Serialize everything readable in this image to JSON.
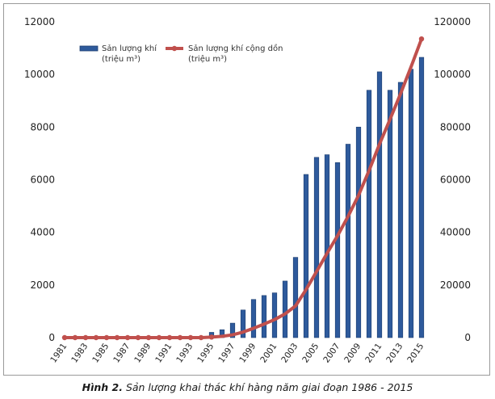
{
  "caption": {
    "label": "Hình 2.",
    "text": "Sản lượng khai thác khí hàng năm giai đoạn 1986 - 2015"
  },
  "chart_data": {
    "type": "bar",
    "x": [
      1981,
      1982,
      1983,
      1984,
      1985,
      1986,
      1987,
      1988,
      1989,
      1990,
      1991,
      1992,
      1993,
      1994,
      1995,
      1996,
      1997,
      1998,
      1999,
      2000,
      2001,
      2002,
      2003,
      2004,
      2005,
      2006,
      2007,
      2008,
      2009,
      2010,
      2011,
      2012,
      2013,
      2014,
      2015
    ],
    "x_tick_labels": [
      "1981",
      "1983",
      "1985",
      "1987",
      "1989",
      "1991",
      "1993",
      "1995",
      "1997",
      "1999",
      "2001",
      "2003",
      "2005",
      "2007",
      "2009",
      "2011",
      "2013",
      "2015"
    ],
    "series": [
      {
        "name": "Sản lượng khí",
        "unit": "(triệu m³)",
        "type": "bar",
        "axis": "left",
        "color": "#2e5a9c",
        "values": [
          0,
          0,
          0,
          0,
          0,
          0,
          0,
          0,
          0,
          0,
          0,
          0,
          0,
          0,
          200,
          300,
          550,
          1050,
          1450,
          1600,
          1700,
          2150,
          3050,
          6200,
          6850,
          6950,
          6650,
          7350,
          8000,
          9400,
          10100,
          9400,
          9700,
          10200,
          10650
        ]
      },
      {
        "name": "Sản lượng khí cộng dồn",
        "unit": "(triệu m³)",
        "type": "line",
        "axis": "right",
        "color": "#c0504d",
        "values": [
          0,
          0,
          0,
          0,
          0,
          0,
          0,
          0,
          0,
          0,
          0,
          0,
          0,
          0,
          200,
          500,
          1050,
          2100,
          3550,
          5150,
          6850,
          9000,
          12050,
          18250,
          25100,
          32050,
          38700,
          46050,
          54050,
          63450,
          73550,
          82950,
          92650,
          102850,
          113500
        ]
      }
    ],
    "yaxis_left": {
      "ylim": [
        0,
        12000
      ],
      "ticks": [
        "0",
        "2000",
        "4000",
        "6000",
        "8000",
        "10000",
        "12000"
      ]
    },
    "yaxis_right": {
      "ylim": [
        0,
        120000
      ],
      "ticks": [
        "0",
        "20000",
        "40000",
        "60000",
        "80000",
        "100000",
        "120000"
      ]
    },
    "legend_position": "top-left",
    "grid": false
  }
}
